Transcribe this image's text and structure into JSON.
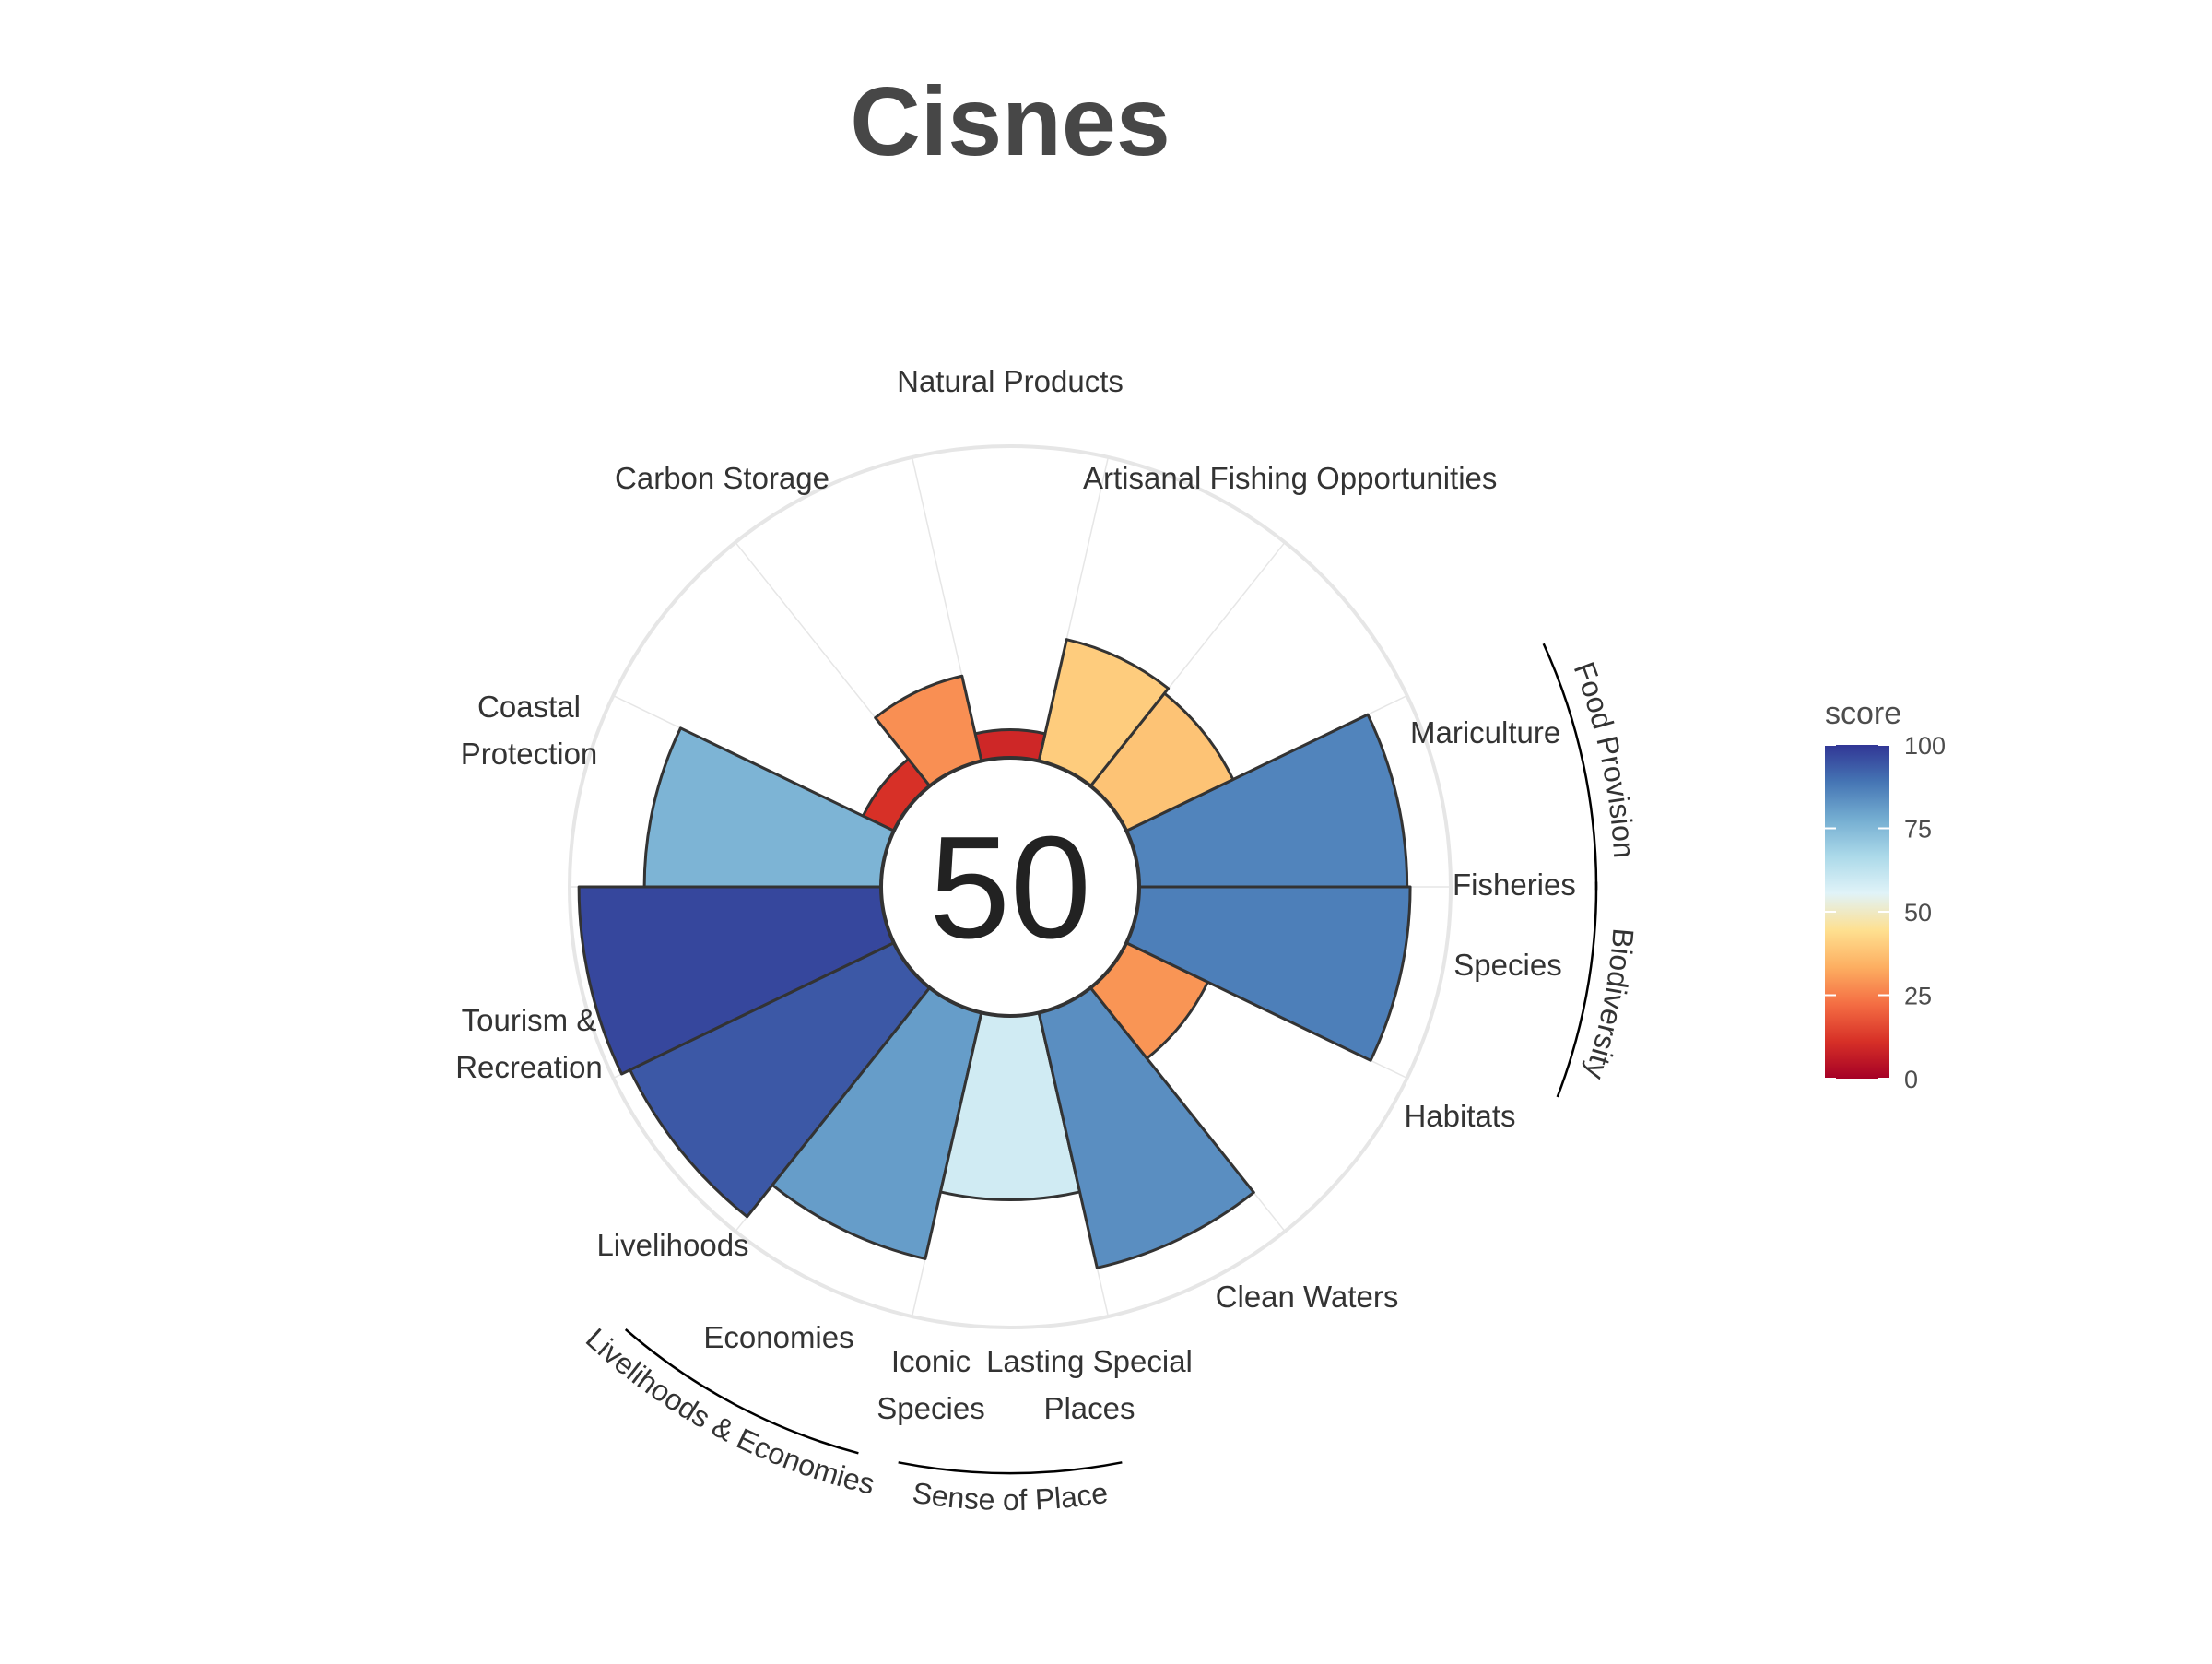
{
  "title": "Cisnes",
  "center_score": "50",
  "legend": {
    "title": "score",
    "ticks": [
      "0",
      "25",
      "50",
      "75",
      "100"
    ]
  },
  "colors": {
    "bar_outline": "#333333",
    "grid": "#e6e6e6",
    "scale": [
      "#a50026",
      "#d73027",
      "#f46d43",
      "#fdae61",
      "#fee090",
      "#e0f3f8",
      "#abd9e9",
      "#74add1",
      "#4575b4",
      "#313695"
    ]
  },
  "chart_data": {
    "type": "polar-bar",
    "title": "Cisnes",
    "score_range": [
      0,
      100
    ],
    "goals": [
      {
        "name": "Fisheries",
        "score": 86
      },
      {
        "name": "Mariculture",
        "score": 38
      },
      {
        "name": "Artisanal Fishing Opportunities",
        "score": 40
      },
      {
        "name": "Natural Products",
        "score": 9
      },
      {
        "name": "Carbon Storage",
        "score": 28
      },
      {
        "name": "Coastal Protection",
        "score": 11
      },
      {
        "name": "Tourism & Recreation",
        "score": 76
      },
      {
        "name": "Livelihoods",
        "score": 97
      },
      {
        "name": "Economies",
        "score": 94
      },
      {
        "name": "Iconic Species",
        "score": 81
      },
      {
        "name": "Lasting Special Places",
        "score": 59
      },
      {
        "name": "Clean Waters",
        "score": 84
      },
      {
        "name": "Habitats",
        "score": 29
      },
      {
        "name": "Species",
        "score": 87
      }
    ],
    "goal_labels": [
      {
        "goal": "Fisheries",
        "lines": [
          "Fisheries"
        ]
      },
      {
        "goal": "Mariculture",
        "lines": [
          "Mariculture"
        ]
      },
      {
        "goal": "Artisanal Fishing Opportunities",
        "lines": [
          "Artisanal Fishing Opportunities"
        ]
      },
      {
        "goal": "Natural Products",
        "lines": [
          "Natural Products"
        ]
      },
      {
        "goal": "Carbon Storage",
        "lines": [
          "Carbon Storage"
        ]
      },
      {
        "goal": "Coastal Protection",
        "lines": [
          "Coastal",
          "Protection"
        ]
      },
      {
        "goal": "Tourism & Recreation",
        "lines": [
          "Tourism &",
          "Recreation"
        ]
      },
      {
        "goal": "Livelihoods",
        "lines": [
          "Livelihoods"
        ]
      },
      {
        "goal": "Economies",
        "lines": [
          "Economies"
        ]
      },
      {
        "goal": "Iconic Species",
        "lines": [
          "Iconic",
          "Species"
        ]
      },
      {
        "goal": "Lasting Special Places",
        "lines": [
          "Lasting Special",
          "Places"
        ]
      },
      {
        "goal": "Clean Waters",
        "lines": [
          "Clean Waters"
        ]
      },
      {
        "goal": "Habitats",
        "lines": [
          "Habitats"
        ]
      },
      {
        "goal": "Species",
        "lines": [
          "Species"
        ]
      }
    ],
    "groups": [
      {
        "name": "Food Provision",
        "goals": [
          "Fisheries",
          "Mariculture"
        ]
      },
      {
        "name": "Biodiversity",
        "goals": [
          "Habitats",
          "Species"
        ]
      },
      {
        "name": "Sense of Place",
        "goals": [
          "Iconic Species",
          "Lasting Special Places"
        ]
      },
      {
        "name": "Livelihoods & Economies",
        "goals": [
          "Livelihoods",
          "Economies"
        ]
      }
    ],
    "legend_position": "right"
  }
}
